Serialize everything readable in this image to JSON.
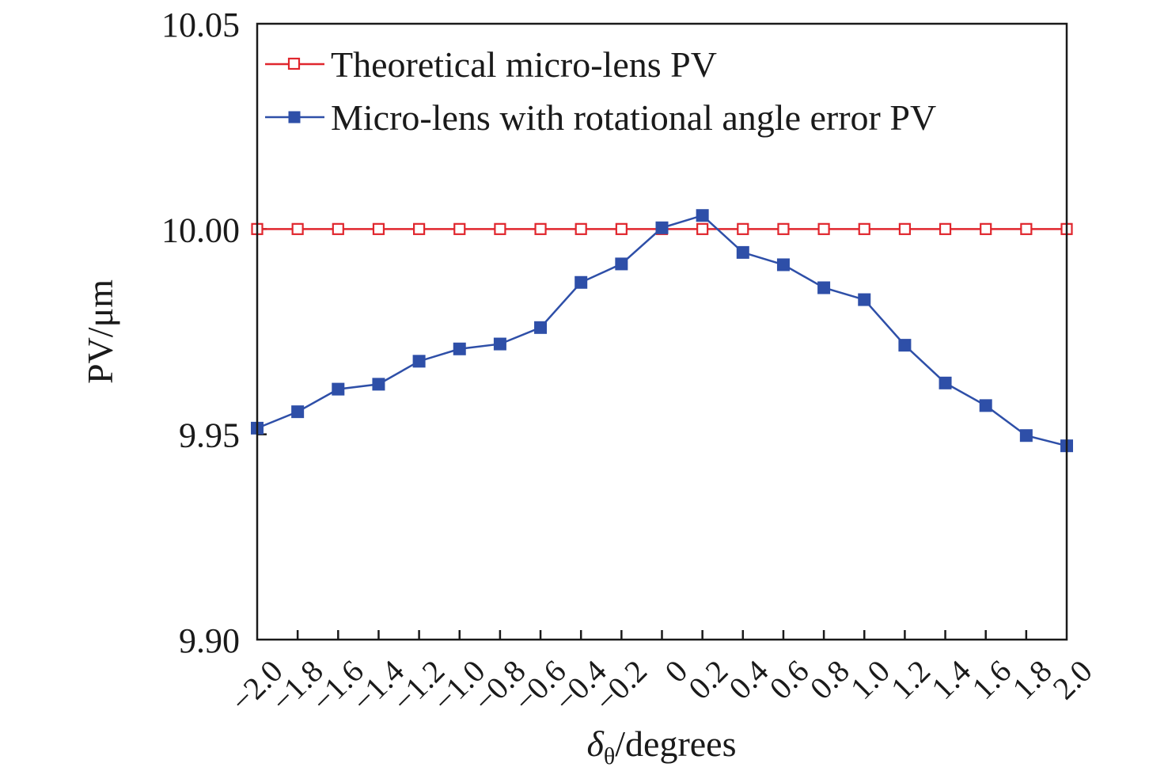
{
  "chart_data": {
    "type": "line",
    "xlabel_symbol": "δ",
    "xlabel_subscript": "θ",
    "xlabel_rest": "/degrees",
    "ylabel": "PV/μm",
    "x_tick_labels": [
      "−2.0",
      "−1.8",
      "−1.6",
      "−1.4",
      "−1.2",
      "−1.0",
      "−0.8",
      "−0.6",
      "−0.4",
      "−0.2",
      "0",
      "0.2",
      "0.4",
      "0.6",
      "0.8",
      "1.0",
      "1.2",
      "1.4",
      "1.6",
      "1.8",
      "2.0"
    ],
    "y_tick_labels": [
      "9.90",
      "9.95",
      "10.00",
      "10.05"
    ],
    "x": [
      -2.0,
      -1.8,
      -1.6,
      -1.4,
      -1.2,
      -1.0,
      -0.8,
      -0.6,
      -0.4,
      -0.2,
      0,
      0.2,
      0.4,
      0.6,
      0.8,
      1.0,
      1.2,
      1.4,
      1.6,
      1.8,
      2.0
    ],
    "xlim": [
      -2.0,
      2.0
    ],
    "ylim": [
      9.9,
      10.05
    ],
    "y_ticks": [
      9.9,
      9.95,
      10.0,
      10.05
    ],
    "grid": false,
    "legend_position": "top-left",
    "series": [
      {
        "name": "Theoretical micro-lens PV",
        "color": "#e0262d",
        "marker": "open-square",
        "values": [
          10.0,
          10.0,
          10.0,
          10.0,
          10.0,
          10.0,
          10.0,
          10.0,
          10.0,
          10.0,
          10.0,
          10.0,
          10.0,
          10.0,
          10.0,
          10.0,
          10.0,
          10.0,
          10.0,
          10.0,
          10.0
        ]
      },
      {
        "name": "Micro-lens with rotational angle error PV",
        "color": "#2e4fa8",
        "marker": "filled-square",
        "values": [
          9.9515,
          9.9555,
          9.961,
          9.9622,
          9.9678,
          9.9708,
          9.972,
          9.976,
          9.987,
          9.9915,
          10.0003,
          10.0033,
          9.9943,
          9.9913,
          9.9857,
          9.9828,
          9.9717,
          9.9625,
          9.957,
          9.9497,
          9.9472
        ]
      }
    ]
  }
}
